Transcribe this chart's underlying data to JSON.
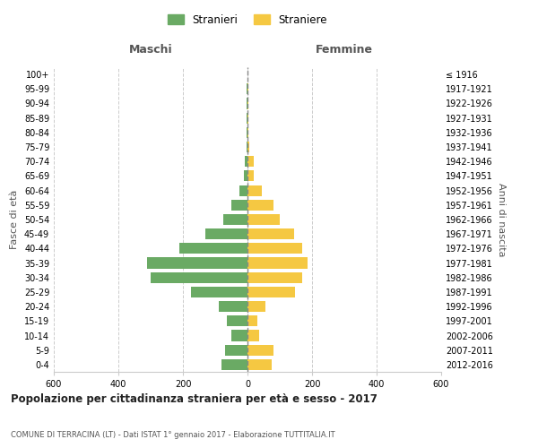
{
  "age_groups": [
    "0-4",
    "5-9",
    "10-14",
    "15-19",
    "20-24",
    "25-29",
    "30-34",
    "35-39",
    "40-44",
    "45-49",
    "50-54",
    "55-59",
    "60-64",
    "65-69",
    "70-74",
    "75-79",
    "80-84",
    "85-89",
    "90-94",
    "95-99",
    "100+"
  ],
  "birth_years": [
    "2012-2016",
    "2007-2011",
    "2002-2006",
    "1997-2001",
    "1992-1996",
    "1987-1991",
    "1982-1986",
    "1977-1981",
    "1972-1976",
    "1967-1971",
    "1962-1966",
    "1957-1961",
    "1952-1956",
    "1947-1951",
    "1942-1946",
    "1937-1941",
    "1932-1936",
    "1927-1931",
    "1922-1926",
    "1917-1921",
    "≤ 1916"
  ],
  "males": [
    80,
    70,
    50,
    65,
    90,
    175,
    300,
    310,
    210,
    130,
    75,
    50,
    25,
    12,
    8,
    4,
    2,
    2,
    3,
    2,
    0
  ],
  "females": [
    75,
    80,
    35,
    30,
    55,
    148,
    170,
    185,
    170,
    145,
    100,
    80,
    45,
    20,
    20,
    5,
    2,
    2,
    2,
    2,
    0
  ],
  "male_color": "#6aaa64",
  "female_color": "#f5c842",
  "background_color": "#ffffff",
  "grid_color": "#cccccc",
  "title": "Popolazione per cittadinanza straniera per età e sesso - 2017",
  "subtitle": "COMUNE DI TERRACINA (LT) - Dati ISTAT 1° gennaio 2017 - Elaborazione TUTTITALIA.IT",
  "xlabel_left": "Maschi",
  "xlabel_right": "Femmine",
  "ylabel_left": "Fasce di età",
  "ylabel_right": "Anni di nascita",
  "xlim": 600,
  "legend_male": "Stranieri",
  "legend_female": "Straniere"
}
